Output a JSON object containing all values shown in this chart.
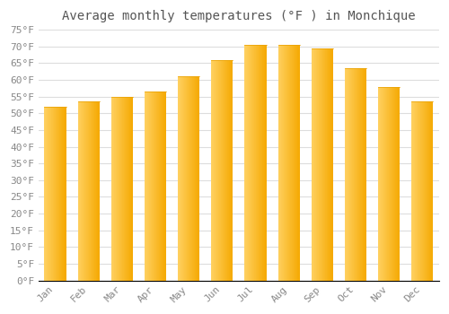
{
  "title": "Average monthly temperatures (°F ) in Monchique",
  "months": [
    "Jan",
    "Feb",
    "Mar",
    "Apr",
    "May",
    "Jun",
    "Jul",
    "Aug",
    "Sep",
    "Oct",
    "Nov",
    "Dec"
  ],
  "values": [
    52,
    53.5,
    55,
    56.5,
    61,
    66,
    70.5,
    70.5,
    69.5,
    63.5,
    58,
    53.5
  ],
  "bar_color_left": "#FFD060",
  "bar_color_right": "#F5A800",
  "ylim": [
    0,
    75
  ],
  "yticks": [
    0,
    5,
    10,
    15,
    20,
    25,
    30,
    35,
    40,
    45,
    50,
    55,
    60,
    65,
    70,
    75
  ],
  "background_color": "#FFFFFF",
  "plot_bg_color": "#FFFFFF",
  "grid_color": "#DDDDDD",
  "title_fontsize": 10,
  "tick_fontsize": 8,
  "font_family": "monospace"
}
